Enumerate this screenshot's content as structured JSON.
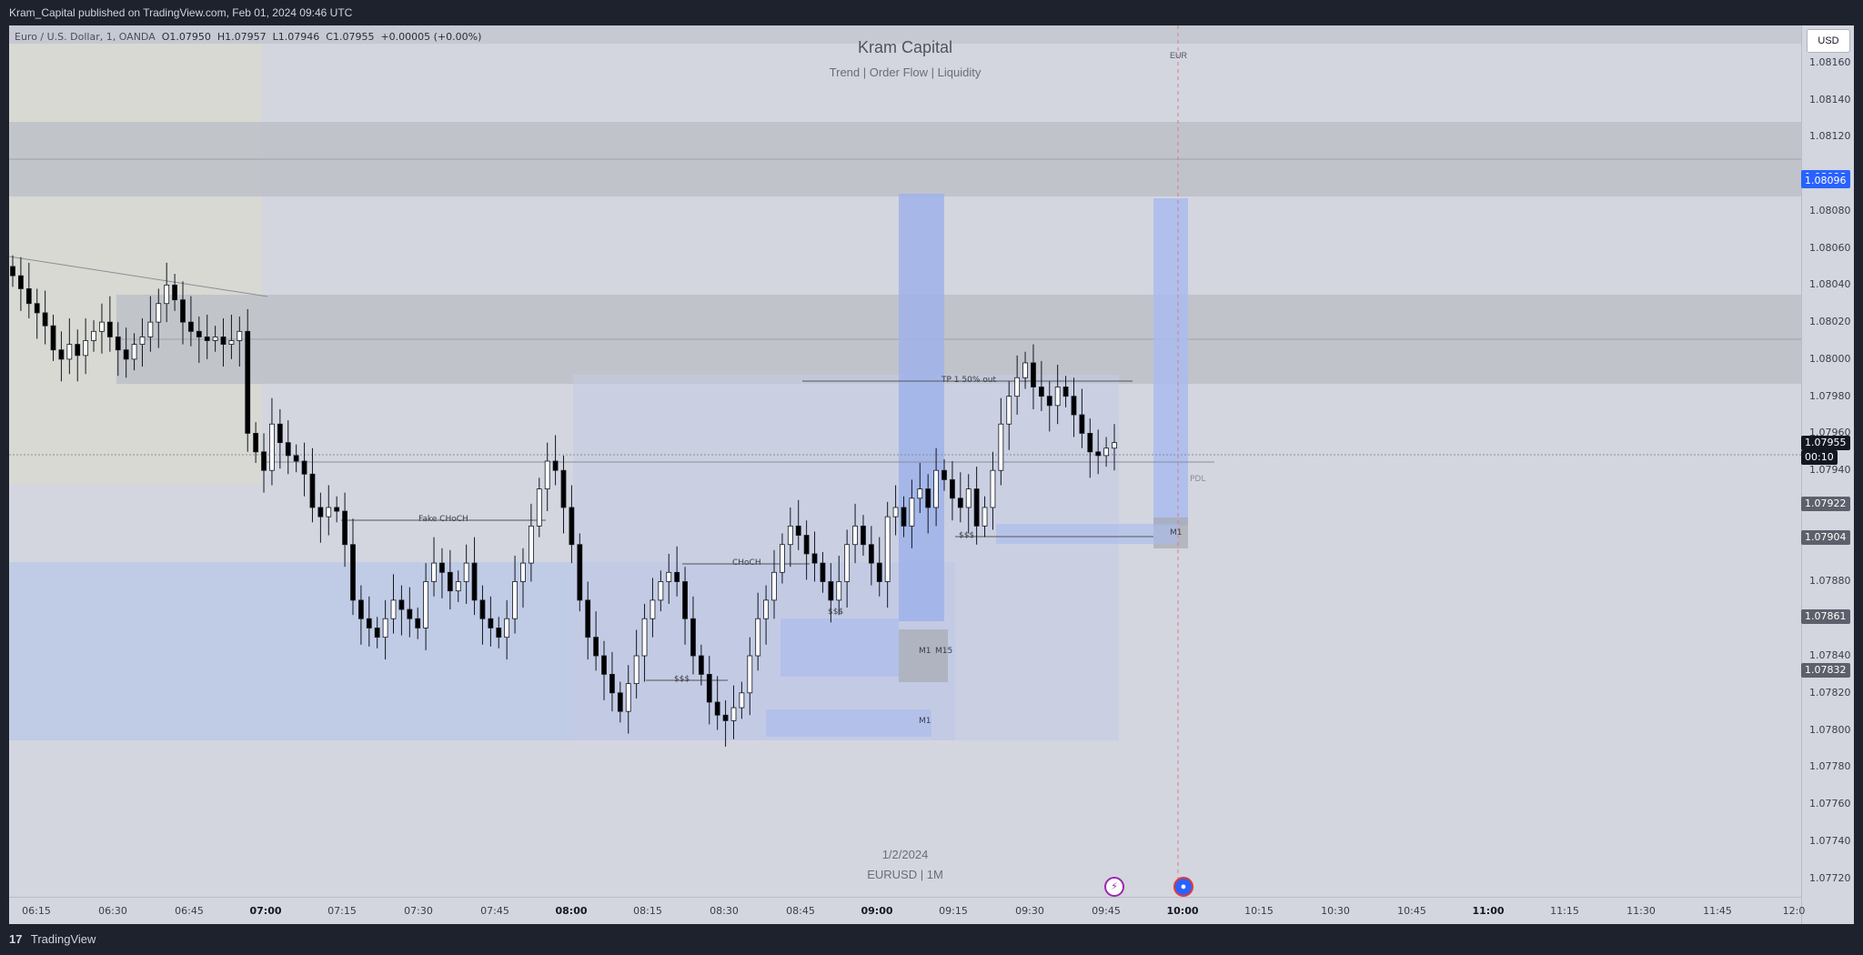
{
  "header": {
    "published_text": "Kram_Capital published on TradingView.com, Feb 01, 2024 09:46 UTC"
  },
  "legend": {
    "symbol": "Euro / U.S. Dollar, 1, OANDA",
    "open": "O1.07950",
    "high": "H1.07957",
    "low": "L1.07946",
    "close": "C1.07955",
    "change": "+0.00005 (+0.00%)"
  },
  "brand": {
    "title": "Kram Capital",
    "subtitle": "Trend | Order Flow | Liquidity"
  },
  "watermark": {
    "date": "1/2/2024",
    "symbol_line": "EURUSD | 1M"
  },
  "currency_button": "USD",
  "currency_label": "EUR",
  "annotations": {
    "fake_choch": "Fake CHoCH",
    "choch": "CHoCH",
    "tp1": "TP 1 50% out",
    "liq1": "$$$",
    "liq2": "$$$",
    "liq3": "$$$",
    "m1_a": "M1",
    "m15": "M15",
    "m1_b": "M1",
    "m1_c": "M1",
    "pdl": "PDL"
  },
  "price_axis": {
    "ticks": [
      "1.08160",
      "1.08140",
      "1.08120",
      "1.08080",
      "1.08060",
      "1.08040",
      "1.08020",
      "1.08000",
      "1.07980",
      "1.07960",
      "1.07940",
      "1.07880",
      "1.07840",
      "1.07820",
      "1.07800",
      "1.07780",
      "1.07760",
      "1.07740",
      "1.07720"
    ],
    "tags": {
      "p1": "1.08098",
      "p2": "1.08096",
      "last": "1.07955",
      "countdown": "00:10",
      "p3": "1.07922",
      "p4": "1.07904",
      "p5": "1.07861",
      "p6": "1.07832"
    },
    "colors": {
      "blue_tag": "#2962ff",
      "dark_tag": "#131722",
      "grey_tag": "#5d606b"
    }
  },
  "time_axis": {
    "ticks": [
      "06:15",
      "06:30",
      "06:45",
      "07:00",
      "07:15",
      "07:30",
      "07:45",
      "08:00",
      "08:15",
      "08:30",
      "08:45",
      "09:00",
      "09:15",
      "09:30",
      "09:45",
      "10:00",
      "10:15",
      "10:30",
      "10:45",
      "11:00",
      "11:15",
      "11:30",
      "11:45",
      "12:0"
    ],
    "bold": [
      "07:00",
      "08:00",
      "09:00",
      "10:00",
      "11:00"
    ]
  },
  "footer": {
    "brand": "TradingView"
  },
  "chart_data": {
    "type": "candlestick",
    "symbol": "EURUSD",
    "interval": "1",
    "ylim": [
      1.0771,
      1.0818
    ],
    "colors": {
      "background": "#d3d6df",
      "up": "#ffffff",
      "down": "#000000",
      "zone_blue": "#a8bdf0",
      "zone_grey": "#b9bcc4"
    },
    "closes": [
      1.08045,
      1.08038,
      1.0803,
      1.08025,
      1.08018,
      1.08005,
      1.08,
      1.08008,
      1.08002,
      1.0801,
      1.08015,
      1.0802,
      1.08012,
      1.08005,
      1.08,
      1.08008,
      1.08012,
      1.0802,
      1.0803,
      1.0804,
      1.08032,
      1.0802,
      1.08015,
      1.08012,
      1.0801,
      1.08012,
      1.08008,
      1.0801,
      1.08015,
      1.0796,
      1.0795,
      1.0794,
      1.07965,
      1.07955,
      1.07948,
      1.07945,
      1.07938,
      1.0792,
      1.07915,
      1.0792,
      1.07918,
      1.079,
      1.0787,
      1.0786,
      1.07855,
      1.0785,
      1.0786,
      1.0787,
      1.07865,
      1.0786,
      1.07855,
      1.0788,
      1.0789,
      1.07885,
      1.07875,
      1.0788,
      1.0789,
      1.0787,
      1.0786,
      1.07855,
      1.0785,
      1.0786,
      1.0788,
      1.0789,
      1.0791,
      1.0793,
      1.07945,
      1.0794,
      1.0792,
      1.079,
      1.0787,
      1.0785,
      1.0784,
      1.0783,
      1.0782,
      1.0781,
      1.07825,
      1.0784,
      1.0786,
      1.0787,
      1.0788,
      1.07885,
      1.0788,
      1.0786,
      1.0784,
      1.0783,
      1.07815,
      1.07808,
      1.07805,
      1.07812,
      1.0782,
      1.0784,
      1.0786,
      1.0787,
      1.07885,
      1.079,
      1.0791,
      1.07905,
      1.07895,
      1.0789,
      1.0788,
      1.0787,
      1.0788,
      1.079,
      1.0791,
      1.079,
      1.0789,
      1.0788,
      1.07915,
      1.0792,
      1.0791,
      1.07925,
      1.0793,
      1.0792,
      1.0794,
      1.07935,
      1.07925,
      1.0792,
      1.0793,
      1.0791,
      1.0792,
      1.0794,
      1.07965,
      1.0798,
      1.0799,
      1.07998,
      1.07985,
      1.0798,
      1.07975,
      1.07985,
      1.0798,
      1.0797,
      1.0796,
      1.0795,
      1.07948,
      1.07952,
      1.07955
    ]
  }
}
